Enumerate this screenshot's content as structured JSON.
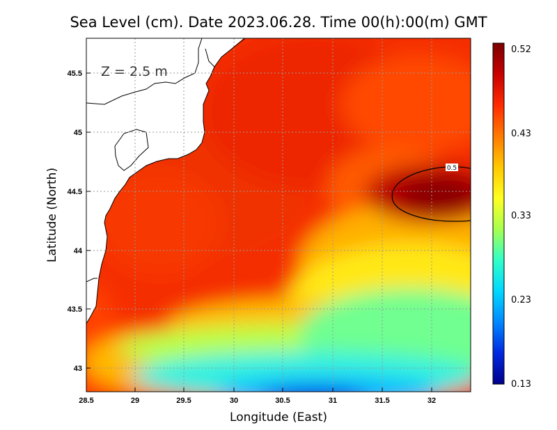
{
  "title": "Sea Level (cm). Date 2023.06.28. Time 00(h):00(m) GMT",
  "depth_label": "Z = 2.5 m",
  "x_axis": {
    "label": "Longitude (East)",
    "ticks": [
      "28.5",
      "29",
      "29.5",
      "30",
      "30.5",
      "31",
      "31.5",
      "32"
    ]
  },
  "y_axis": {
    "label": "Latitude (North)",
    "ticks": [
      "43",
      "43.5",
      "44",
      "44.5",
      "45",
      "45.5"
    ]
  },
  "colorbar": {
    "labels": [
      "0.52",
      "0.43",
      "0.33",
      "0.23",
      "0.13"
    ],
    "min": 0.13,
    "max": 0.52,
    "stops": [
      "#7a0000",
      "#c80000",
      "#ff2a00",
      "#ff7a00",
      "#ffc800",
      "#ffff20",
      "#a8ff50",
      "#30ffc8",
      "#00d8ff",
      "#0088ff",
      "#0028e0",
      "#00008c"
    ]
  },
  "contour": {
    "label": "0.5"
  },
  "chart_data": {
    "type": "heatmap",
    "title": "Sea Level (cm). Date 2023.06.28. Time 00(h):00(m) GMT",
    "xlabel": "Longitude (East)",
    "ylabel": "Latitude (North)",
    "xlim": [
      28.5,
      32.4
    ],
    "ylim": [
      42.8,
      45.8
    ],
    "value_range": [
      0.13,
      0.52
    ],
    "contours": [
      0.5
    ],
    "grid": true
  }
}
